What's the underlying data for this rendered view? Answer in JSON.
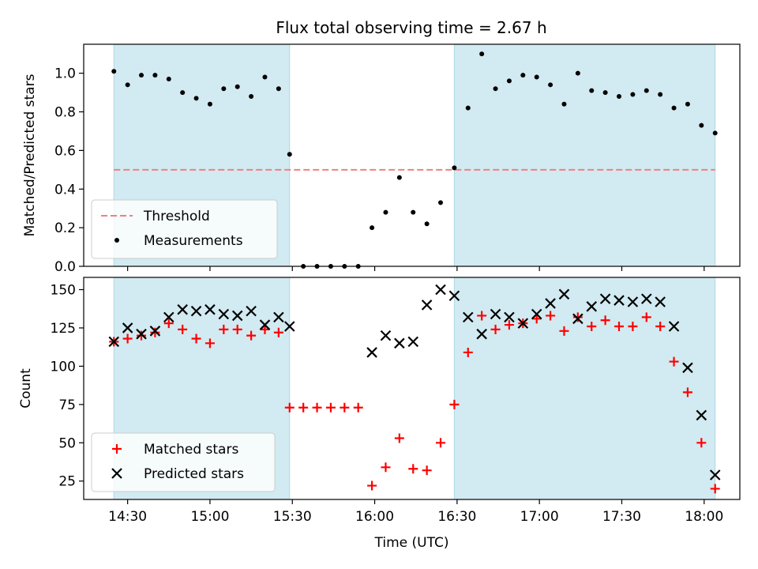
{
  "title": "Flux total observing time = 2.67 h",
  "colors": {
    "shade": "#add8e6",
    "threshold": "#f08080",
    "matched": "#ff0000",
    "predicted": "#000000",
    "measure": "#000000"
  },
  "chart_data": [
    {
      "type": "scatter",
      "ylabel": "Matched/Predicted stars",
      "xlim": [
        "14:14",
        "18:13"
      ],
      "ylim": [
        0,
        1.15
      ],
      "yticks": [
        0,
        0.2,
        0.4,
        0.6,
        0.8,
        1.0
      ],
      "ytick_labels": [
        "0.0",
        "0.2",
        "0.4",
        "0.6",
        "0.8",
        "1.0"
      ],
      "grid": false,
      "legend": "lower-left",
      "shaded_intervals": [
        [
          "14:25",
          "15:29"
        ],
        [
          "16:29",
          "18:04"
        ]
      ],
      "threshold": {
        "name": "Threshold",
        "y": 0.5,
        "style": "dashed"
      },
      "series": [
        {
          "name": "Measurements",
          "marker": "dot",
          "x": [
            "14:25",
            "14:30",
            "14:35",
            "14:40",
            "14:45",
            "14:50",
            "14:55",
            "15:00",
            "15:05",
            "15:10",
            "15:15",
            "15:20",
            "15:25",
            "15:29",
            "15:34",
            "15:39",
            "15:44",
            "15:49",
            "15:54",
            "15:59",
            "16:04",
            "16:09",
            "16:14",
            "16:19",
            "16:24",
            "16:29",
            "16:34",
            "16:39",
            "16:44",
            "16:49",
            "16:54",
            "16:59",
            "17:04",
            "17:09",
            "17:14",
            "17:19",
            "17:24",
            "17:29",
            "17:34",
            "17:39",
            "17:44",
            "17:49",
            "17:54",
            "17:59",
            "18:04"
          ],
          "y": [
            1.01,
            0.94,
            0.99,
            0.99,
            0.97,
            0.9,
            0.87,
            0.84,
            0.92,
            0.93,
            0.88,
            0.98,
            0.92,
            0.58,
            0.0,
            0.0,
            0.0,
            0.0,
            0.0,
            0.2,
            0.28,
            0.46,
            0.28,
            0.22,
            0.33,
            0.51,
            0.82,
            1.1,
            0.92,
            0.96,
            0.99,
            0.98,
            0.94,
            0.84,
            1.0,
            0.91,
            0.9,
            0.88,
            0.89,
            0.91,
            0.89,
            0.82,
            0.84,
            0.73,
            0.69
          ]
        }
      ]
    },
    {
      "type": "scatter",
      "xlabel": "Time (UTC)",
      "ylabel": "Count",
      "xlim": [
        "14:14",
        "18:13"
      ],
      "xticks": [
        "14:30",
        "15:00",
        "15:30",
        "16:00",
        "16:30",
        "17:00",
        "17:30",
        "18:00"
      ],
      "ylim": [
        13,
        158
      ],
      "yticks": [
        25,
        50,
        75,
        100,
        125,
        150
      ],
      "ytick_labels": [
        "25",
        "50",
        "75",
        "100",
        "125",
        "150"
      ],
      "grid": false,
      "legend": "lower-left",
      "shaded_intervals": [
        [
          "14:25",
          "15:29"
        ],
        [
          "16:29",
          "18:04"
        ]
      ],
      "series": [
        {
          "name": "Matched stars",
          "marker": "plus",
          "x": [
            "14:25",
            "14:30",
            "14:35",
            "14:40",
            "14:45",
            "14:50",
            "14:55",
            "15:00",
            "15:05",
            "15:10",
            "15:15",
            "15:20",
            "15:25",
            "15:29",
            "15:34",
            "15:39",
            "15:44",
            "15:49",
            "15:54",
            "15:59",
            "16:04",
            "16:09",
            "16:14",
            "16:19",
            "16:24",
            "16:29",
            "16:34",
            "16:39",
            "16:44",
            "16:49",
            "16:54",
            "16:59",
            "17:04",
            "17:09",
            "17:14",
            "17:19",
            "17:24",
            "17:29",
            "17:34",
            "17:39",
            "17:44",
            "17:49",
            "17:54",
            "17:59",
            "18:04"
          ],
          "y": [
            116,
            118,
            120,
            122,
            128,
            124,
            118,
            115,
            124,
            124,
            120,
            124,
            122,
            73,
            73,
            73,
            73,
            73,
            73,
            22,
            34,
            53,
            33,
            32,
            50,
            75,
            109,
            133,
            124,
            127,
            128,
            131,
            133,
            123,
            132,
            126,
            130,
            126,
            126,
            132,
            126,
            103,
            83,
            50,
            20
          ]
        },
        {
          "name": "Predicted stars",
          "marker": "x",
          "x": [
            "14:25",
            "14:30",
            "14:35",
            "14:40",
            "14:45",
            "14:50",
            "14:55",
            "15:00",
            "15:05",
            "15:10",
            "15:15",
            "15:20",
            "15:25",
            "15:29",
            "15:59",
            "16:04",
            "16:09",
            "16:14",
            "16:19",
            "16:24",
            "16:29",
            "16:34",
            "16:39",
            "16:44",
            "16:49",
            "16:54",
            "16:59",
            "17:04",
            "17:09",
            "17:14",
            "17:19",
            "17:24",
            "17:29",
            "17:34",
            "17:39",
            "17:44",
            "17:49",
            "17:54",
            "17:59",
            "18:04"
          ],
          "y": [
            116,
            125,
            121,
            123,
            132,
            137,
            136,
            137,
            134,
            133,
            136,
            127,
            132,
            126,
            109,
            120,
            115,
            116,
            140,
            150,
            146,
            132,
            121,
            134,
            132,
            128,
            134,
            141,
            147,
            131,
            139,
            144,
            143,
            142,
            144,
            142,
            126,
            99,
            68,
            29
          ]
        }
      ]
    }
  ]
}
